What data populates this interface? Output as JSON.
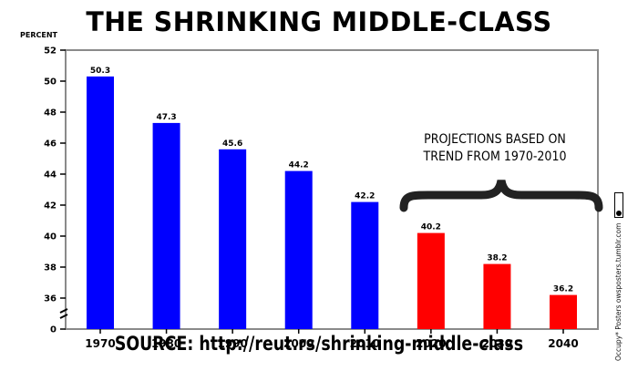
{
  "title": "THE SHRINKING MIDDLE-CLASS",
  "source": "SOURCE: http://reut.rs/shrinking-middle-class",
  "credit": "Occupy* Posters   owsposters.tumblr.com",
  "annotation": [
    "PROJECTIONS BASED ON",
    "TREND FROM 1970-2010"
  ],
  "chart_data": {
    "type": "bar",
    "title": "THE SHRINKING MIDDLE-CLASS",
    "xlabel": "",
    "ylabel": "PERCENT",
    "ylim": [
      34,
      52
    ],
    "yticks": [
      0,
      36,
      38,
      40,
      42,
      44,
      46,
      48,
      50,
      52
    ],
    "axis_break": true,
    "grid": false,
    "categories": [
      "1970",
      "1980",
      "1990",
      "2000",
      "2010",
      "2020",
      "2030",
      "2040"
    ],
    "values": [
      50.3,
      47.3,
      45.6,
      44.2,
      42.2,
      40.2,
      38.2,
      36.2
    ],
    "labels": [
      "50.3",
      "47.3",
      "45.6",
      "44.2",
      "42.2",
      "40.2",
      "38.2",
      "36.2"
    ],
    "colors": [
      "#0000ff",
      "#0000ff",
      "#0000ff",
      "#0000ff",
      "#0000ff",
      "#ff0000",
      "#ff0000",
      "#ff0000"
    ]
  }
}
